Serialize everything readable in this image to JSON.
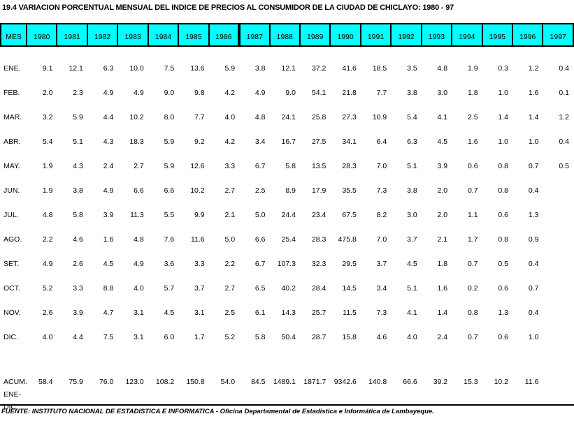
{
  "title": "19.4 VARIACION PORCENTUAL MENSUAL DEL INDICE DE PRECIOS AL CONSUMIDOR DE LA CIUDAD DE CHICLAYO: 1980 - 97",
  "colors": {
    "header_bg": "#00ffff",
    "border": "#000000",
    "text": "#000000",
    "page_bg": "#ffffff"
  },
  "table": {
    "header": [
      "MES",
      "1980",
      "1981",
      "1982",
      "1983",
      "1984",
      "1985",
      "1986",
      "1987",
      "1988",
      "1989",
      "1990",
      "1991",
      "1992",
      "1993",
      "1994",
      "1995",
      "1996",
      "1997"
    ],
    "rows": [
      {
        "label": "ENE.",
        "values": [
          "9.1",
          "12.1",
          "6.3",
          "10.0",
          "7.5",
          "13.6",
          "5.9",
          "3.8",
          "12.1",
          "37.2",
          "41.6",
          "18.5",
          "3.5",
          "4.8",
          "1.9",
          "0.3",
          "1.2",
          "0.4"
        ]
      },
      {
        "label": "FEB.",
        "values": [
          "2.0",
          "2.3",
          "4.9",
          "4.9",
          "9.0",
          "9.8",
          "4.2",
          "4.9",
          "9.0",
          "54.1",
          "21.8",
          "7.7",
          "3.8",
          "3.0",
          "1.8",
          "1.0",
          "1.6",
          "0.1"
        ]
      },
      {
        "label": "MAR.",
        "values": [
          "3.2",
          "5.9",
          "4.4",
          "10.2",
          "8.0",
          "7.7",
          "4.0",
          "4.8",
          "24.1",
          "25.8",
          "27.3",
          "10.9",
          "5.4",
          "4.1",
          "2.5",
          "1.4",
          "1.4",
          "1.2"
        ]
      },
      {
        "label": "ABR.",
        "values": [
          "5.4",
          "5.1",
          "4.3",
          "18.3",
          "5.9",
          "9.2",
          "4.2",
          "3.4",
          "16.7",
          "27.5",
          "34.1",
          "6.4",
          "6.3",
          "4.5",
          "1.6",
          "1.0",
          "1.0",
          "0.4"
        ]
      },
      {
        "label": "MAY.",
        "values": [
          "1.9",
          "4.3",
          "2.4",
          "2.7",
          "5.9",
          "12.6",
          "3.3",
          "6.7",
          "5.8",
          "13.5",
          "28.3",
          "7.0",
          "5.1",
          "3.9",
          "0.6",
          "0.8",
          "0.7",
          "0.5"
        ]
      },
      {
        "label": "JUN.",
        "values": [
          "1.9",
          "3.8",
          "4.9",
          "6.6",
          "6.6",
          "10.2",
          "2.7",
          "2.5",
          "8.9",
          "17.9",
          "35.5",
          "7.3",
          "3.8",
          "2.0",
          "0.7",
          "0.8",
          "0.4",
          ""
        ]
      },
      {
        "label": "JUL.",
        "values": [
          "4.8",
          "5.8",
          "3.9",
          "11.3",
          "5.5",
          "9.9",
          "2.1",
          "5.0",
          "24.4",
          "23.4",
          "67.5",
          "8.2",
          "3.0",
          "2.0",
          "1.1",
          "0.6",
          "1.3",
          ""
        ]
      },
      {
        "label": "AGO.",
        "values": [
          "2.2",
          "4.6",
          "1.6",
          "4.8",
          "7.6",
          "11.6",
          "5.0",
          "6.6",
          "25.4",
          "28.3",
          "475.8",
          "7.0",
          "3.7",
          "2.1",
          "1.7",
          "0.8",
          "0.9",
          ""
        ]
      },
      {
        "label": "SET.",
        "values": [
          "4.9",
          "2.6",
          "4.5",
          "4.9",
          "3.6",
          "3.3",
          "2.2",
          "6.7",
          "107.3",
          "32.3",
          "29.5",
          "3.7",
          "4.5",
          "1.8",
          "0.7",
          "0.5",
          "0.4",
          ""
        ]
      },
      {
        "label": "OCT.",
        "values": [
          "5.2",
          "3.3",
          "8.8",
          "4.0",
          "5.7",
          "3.7",
          "2.7",
          "6.5",
          "40.2",
          "28.4",
          "14.5",
          "3.4",
          "5.1",
          "1.6",
          "0.2",
          "0.6",
          "0.7",
          ""
        ]
      },
      {
        "label": "NOV.",
        "values": [
          "2.6",
          "3.9",
          "4.7",
          "3.1",
          "4.5",
          "3.1",
          "2.5",
          "6.1",
          "14.3",
          "25.7",
          "11.5",
          "7.3",
          "4.1",
          "1.4",
          "0.8",
          "1.3",
          "0.4",
          ""
        ]
      },
      {
        "label": "DIC.",
        "values": [
          "4.0",
          "4.4",
          "7.5",
          "3.1",
          "6.0",
          "1.7",
          "5.2",
          "5.8",
          "50.4",
          "28.7",
          "15.8",
          "4.6",
          "4.0",
          "2.4",
          "0.7",
          "0.6",
          "1.0",
          ""
        ]
      }
    ],
    "summary": {
      "label_line1": "ACUM.",
      "label_line2": "ENE-DIC.",
      "values": [
        "58.4",
        "75.9",
        "76.0",
        "123.0",
        "108.2",
        "150.8",
        "54.0",
        "84.5",
        "1489.1",
        "1871.7",
        "9342.6",
        "140.8",
        "66.6",
        "39.2",
        "15.3",
        "10.2",
        "11.6",
        ""
      ]
    }
  },
  "footer": {
    "source": "FUENTE: INSTITUTO NACIONAL DE ESTADISTICA E INFORMATICA - Oficina Departamental de Estadistica e Informática de Lambayeque."
  }
}
